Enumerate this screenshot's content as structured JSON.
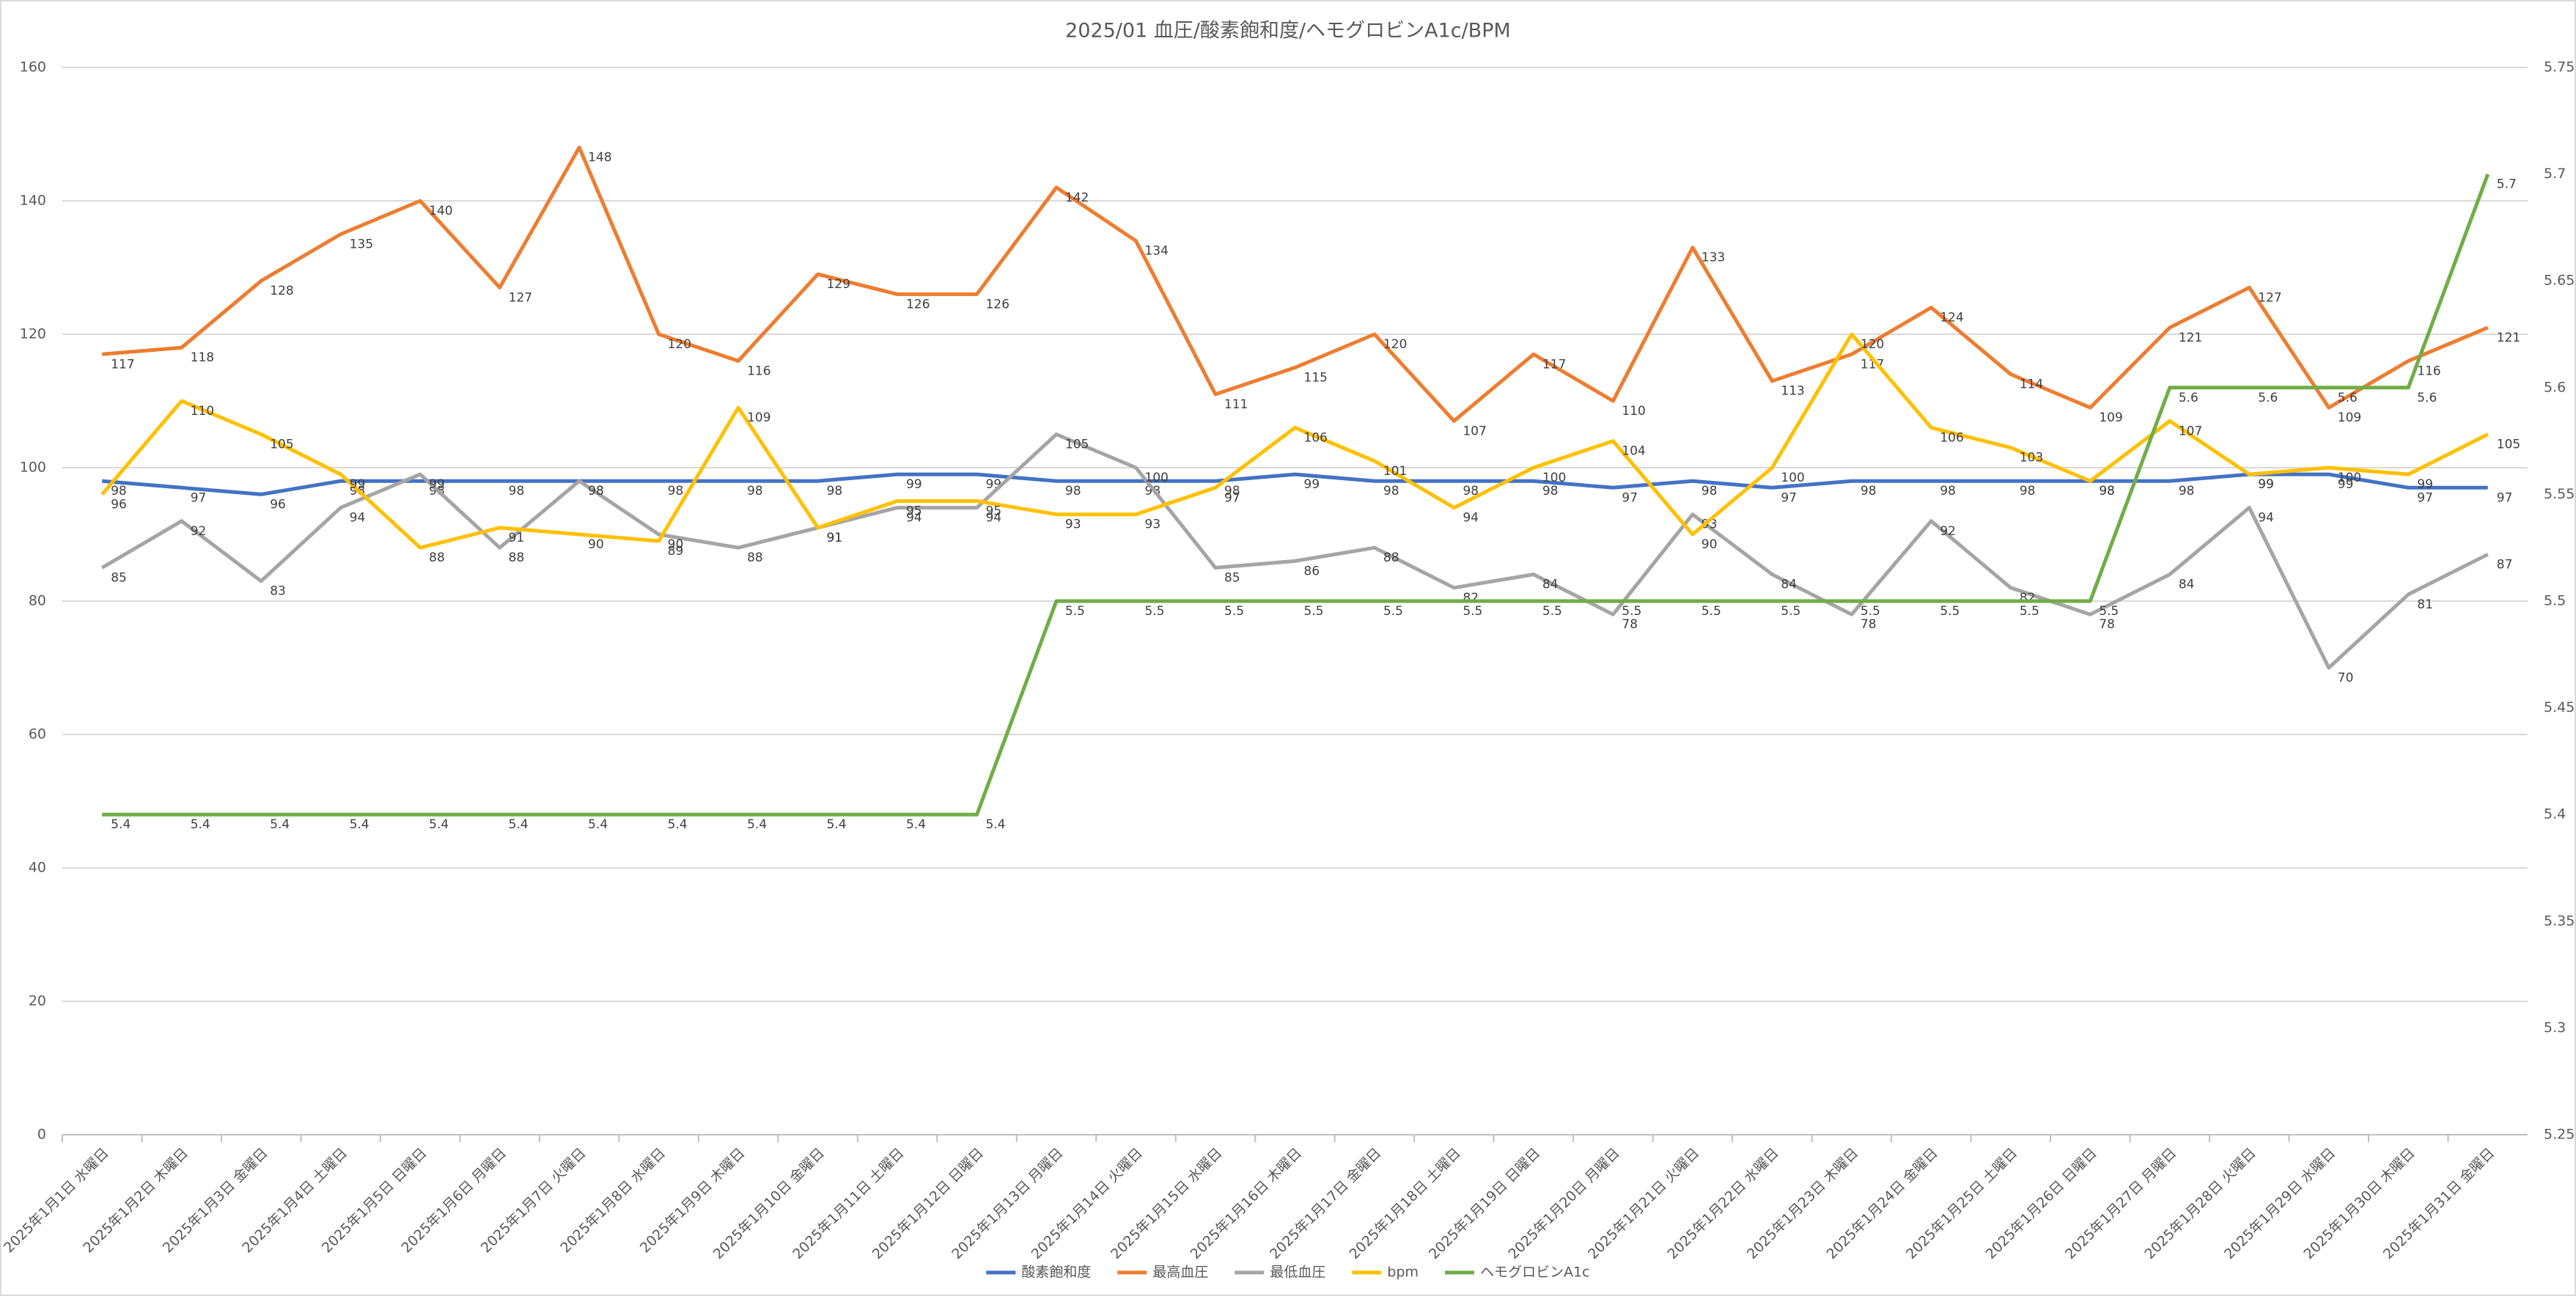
{
  "chart_data": {
    "type": "line",
    "title": "2025/01 血圧/酸素飽和度/ヘモグロビンA1c/BPM",
    "categories": [
      "2025年1月1日 水曜日",
      "2025年1月2日 木曜日",
      "2025年1月3日 金曜日",
      "2025年1月4日 土曜日",
      "2025年1月5日 日曜日",
      "2025年1月6日 月曜日",
      "2025年1月7日 火曜日",
      "2025年1月8日 水曜日",
      "2025年1月9日 木曜日",
      "2025年1月10日 金曜日",
      "2025年1月11日 土曜日",
      "2025年1月12日 日曜日",
      "2025年1月13日 月曜日",
      "2025年1月14日 火曜日",
      "2025年1月15日 水曜日",
      "2025年1月16日 木曜日",
      "2025年1月17日 金曜日",
      "2025年1月18日 土曜日",
      "2025年1月19日 日曜日",
      "2025年1月20日 月曜日",
      "2025年1月21日 火曜日",
      "2025年1月22日 水曜日",
      "2025年1月23日 木曜日",
      "2025年1月24日 金曜日",
      "2025年1月25日 土曜日",
      "2025年1月26日 日曜日",
      "2025年1月27日 月曜日",
      "2025年1月28日 火曜日",
      "2025年1月29日 水曜日",
      "2025年1月30日 木曜日",
      "2025年1月31日 金曜日"
    ],
    "series": [
      {
        "name": "酸素飽和度",
        "color": "#4472c4",
        "values": [
          98,
          97,
          96,
          98,
          98,
          98,
          98,
          98,
          98,
          98,
          99,
          99,
          98,
          98,
          98,
          99,
          98,
          98,
          98,
          97,
          98,
          97,
          98,
          98,
          98,
          98,
          98,
          99,
          99,
          97,
          97
        ]
      },
      {
        "name": "最高血圧",
        "color": "#ed7d31",
        "values": [
          117,
          118,
          128,
          135,
          140,
          127,
          148,
          120,
          116,
          129,
          126,
          126,
          142,
          134,
          111,
          115,
          120,
          107,
          117,
          110,
          133,
          113,
          117,
          124,
          114,
          109,
          121,
          127,
          109,
          116,
          121
        ]
      },
      {
        "name": "最低血圧",
        "color": "#a5a5a5",
        "values": [
          85,
          92,
          83,
          94,
          99,
          88,
          98,
          90,
          88,
          91,
          94,
          94,
          105,
          100,
          85,
          86,
          88,
          82,
          84,
          78,
          93,
          84,
          78,
          92,
          82,
          78,
          84,
          94,
          70,
          81,
          87
        ]
      },
      {
        "name": "bpm",
        "color": "#ffc000",
        "values": [
          96,
          110,
          105,
          99,
          88,
          91,
          90,
          89,
          109,
          91,
          95,
          95,
          93,
          93,
          97,
          106,
          101,
          94,
          100,
          104,
          90,
          100,
          120,
          106,
          103,
          98,
          107,
          99,
          100,
          99,
          105
        ]
      },
      {
        "name": "ヘモグロビンA1c",
        "color": "#70ad47",
        "axis": "y2",
        "values": [
          5.4,
          5.4,
          5.4,
          5.4,
          5.4,
          5.4,
          5.4,
          5.4,
          5.4,
          5.4,
          5.4,
          5.4,
          5.5,
          5.5,
          5.5,
          5.5,
          5.5,
          5.5,
          5.5,
          5.5,
          5.5,
          5.5,
          5.5,
          5.5,
          5.5,
          5.5,
          5.6,
          5.6,
          5.6,
          5.6,
          5.7
        ]
      }
    ],
    "ylim": [
      0,
      160
    ],
    "yticks": [
      0,
      20,
      40,
      60,
      80,
      100,
      120,
      140,
      160
    ],
    "y2lim": [
      5.25,
      5.75
    ],
    "y2ticks": [
      5.25,
      5.3,
      5.35,
      5.4,
      5.45,
      5.5,
      5.55,
      5.6,
      5.65,
      5.7,
      5.75
    ],
    "grid": true,
    "legend": "bottom",
    "data_labels": true
  }
}
